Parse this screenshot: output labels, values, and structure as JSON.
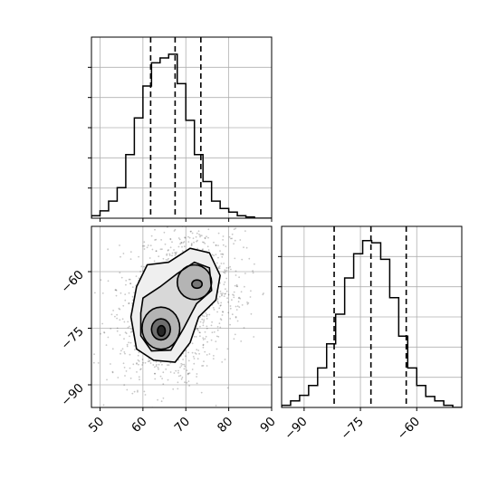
{
  "chart_data": {
    "type": "corner",
    "parameters": [
      {
        "xlim": [
          48,
          90
        ],
        "ticks": [
          50,
          60,
          70,
          80,
          90
        ],
        "tick_labels": [
          "50",
          "60",
          "70",
          "80",
          "90"
        ],
        "quantiles": [
          61.8,
          67.5,
          73.5
        ],
        "histogram": {
          "type": "step",
          "bin_edges": [
            48,
            50,
            52,
            54,
            56,
            58,
            60,
            62,
            64,
            66,
            68,
            70,
            72,
            74,
            76,
            78,
            80,
            82,
            84,
            86,
            88,
            90
          ],
          "counts": [
            2,
            6,
            14,
            25,
            52,
            82,
            108,
            127,
            131,
            134,
            110,
            80,
            52,
            30,
            14,
            8,
            5,
            2,
            1,
            0,
            0
          ],
          "ylim": [
            0,
            148
          ]
        }
      },
      {
        "xlim": [
          -96,
          -48
        ],
        "ticks": [
          -90,
          -75,
          -60
        ],
        "tick_labels": [
          "−90",
          "−75",
          "−60"
        ],
        "quantiles": [
          -82.0,
          -72.2,
          -62.8
        ],
        "histogram": {
          "type": "step",
          "bin_edges": [
            -96,
            -93.6,
            -91.2,
            -88.8,
            -86.4,
            -84,
            -81.6,
            -79.2,
            -76.8,
            -74.4,
            -72,
            -69.6,
            -67.2,
            -64.8,
            -62.4,
            -60,
            -57.6,
            -55.2,
            -52.8,
            -50.4,
            -48
          ],
          "counts": [
            2,
            6,
            11,
            20,
            36,
            58,
            85,
            118,
            140,
            152,
            150,
            135,
            100,
            65,
            36,
            20,
            10,
            6,
            2,
            0
          ],
          "ylim": [
            0,
            165
          ]
        }
      }
    ],
    "density_panel": {
      "x_parameter": 0,
      "y_parameter": 1,
      "xlim": [
        48,
        90
      ],
      "ylim": [
        -96,
        -48
      ],
      "x_ticks": [
        50,
        60,
        70,
        80,
        90
      ],
      "y_ticks": [
        -90,
        -75,
        -60
      ],
      "y_tick_labels": [
        "−90",
        "−75",
        "−60"
      ],
      "modes": [
        {
          "x": 64.0,
          "y": -74.5
        },
        {
          "x": 72.0,
          "y": -63.5
        }
      ],
      "contour_levels": 4,
      "scatter": "grey points outside contours"
    },
    "grid": true,
    "quantile_lines": "dashed",
    "title": "",
    "xlabel": "",
    "ylabel": ""
  }
}
